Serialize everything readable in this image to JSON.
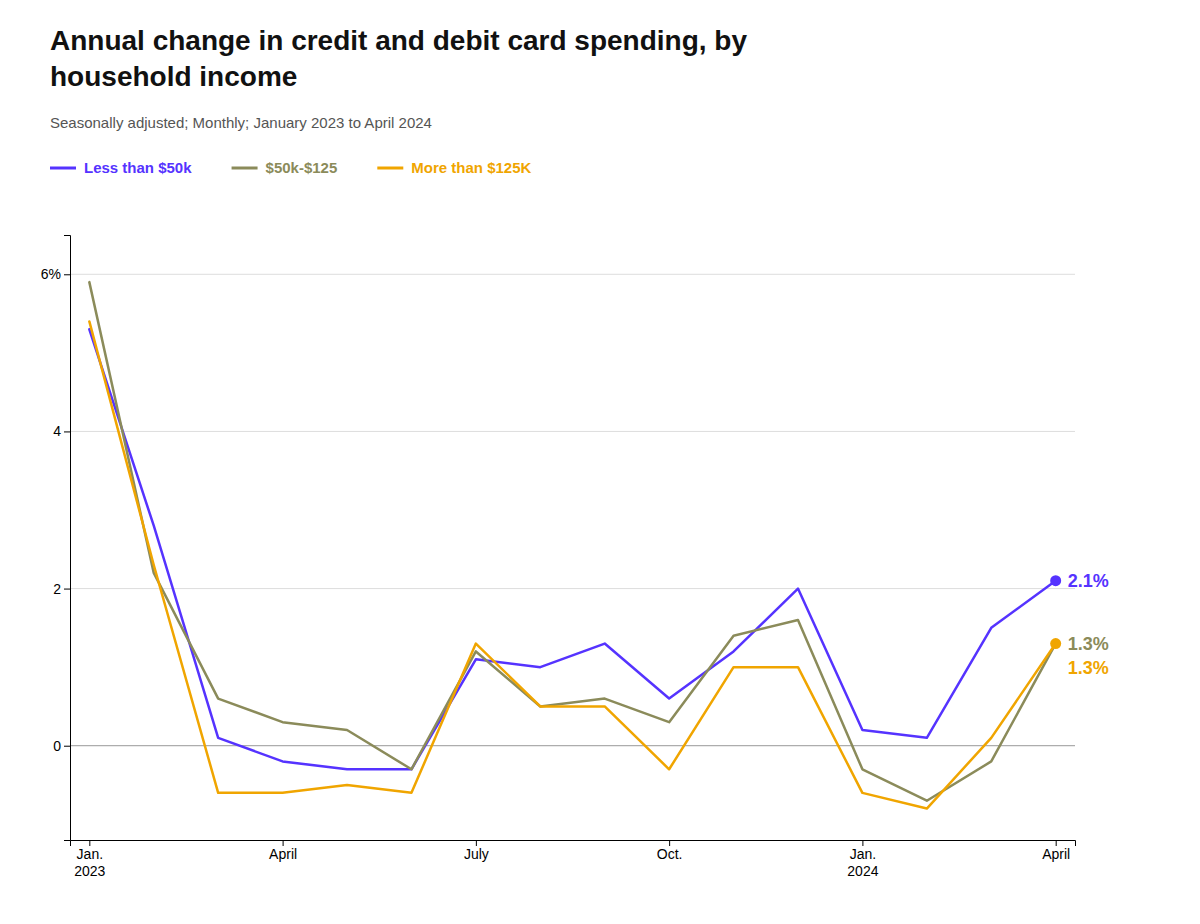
{
  "chart_data": {
    "type": "line",
    "title": "Annual change in credit and debit card spending, by\nhousehold income",
    "subtitle": "Seasonally adjusted; Monthly; January 2023 to April 2024",
    "categories": [
      "Jan.\n2023",
      null,
      null,
      "April",
      null,
      null,
      "July",
      null,
      null,
      "Oct.",
      null,
      null,
      "Jan.\n2024",
      null,
      null,
      "April"
    ],
    "series": [
      {
        "name": "Less than $50k",
        "color": "#5533ff",
        "marker": "end",
        "values": [
          5.3,
          2.8,
          0.1,
          -0.2,
          -0.3,
          -0.3,
          1.1,
          1.0,
          1.3,
          0.6,
          1.2,
          2.0,
          0.2,
          0.1,
          1.5,
          2.1
        ],
        "value_labels": [
          null,
          null,
          null,
          null,
          null,
          null,
          null,
          null,
          null,
          null,
          null,
          null,
          null,
          null,
          null,
          "2.1%"
        ]
      },
      {
        "name": "$50k-$125",
        "color": "#8b8b5a",
        "values": [
          5.9,
          2.2,
          0.6,
          0.3,
          0.2,
          -0.3,
          1.2,
          0.5,
          0.6,
          0.3,
          1.4,
          1.6,
          -0.3,
          -0.7,
          -0.2,
          1.3
        ],
        "value_labels": [
          null,
          null,
          null,
          null,
          null,
          null,
          null,
          null,
          null,
          null,
          null,
          null,
          null,
          null,
          null,
          "1.3%"
        ]
      },
      {
        "name": "More than $125K",
        "color": "#f0a500",
        "marker": "end",
        "values": [
          5.4,
          2.3,
          -0.6,
          -0.6,
          -0.5,
          -0.6,
          1.3,
          0.5,
          0.5,
          -0.3,
          1.0,
          1.0,
          -0.6,
          -0.8,
          0.1,
          1.3
        ],
        "value_labels": [
          null,
          null,
          null,
          null,
          null,
          null,
          null,
          null,
          null,
          null,
          null,
          null,
          null,
          null,
          null,
          "1.3%"
        ]
      }
    ],
    "ylim": [
      -1.2,
      6.5
    ],
    "yticks": [
      0,
      2,
      4,
      {
        "value": 6,
        "label": "6%"
      }
    ],
    "grid": true,
    "legend": "top-left",
    "data_labels": true
  }
}
